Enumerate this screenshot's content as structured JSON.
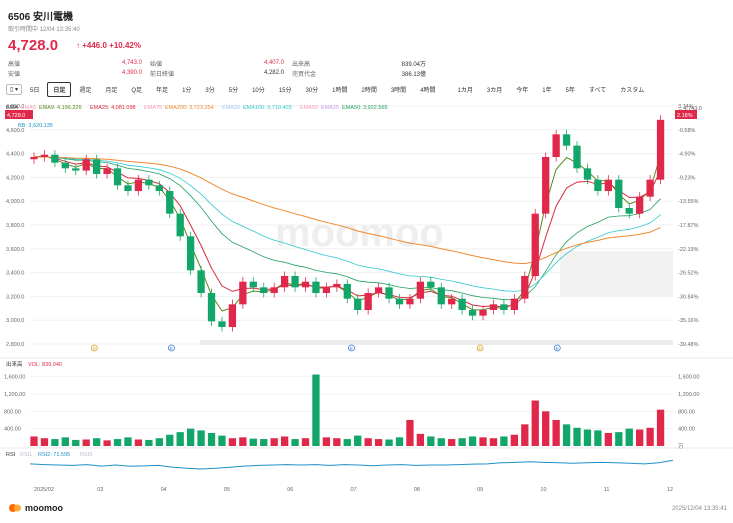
{
  "header": {
    "code": "6506",
    "name": "安川電機",
    "status": "取引時間中 12/04 13:35:40"
  },
  "quote": {
    "price": "4,728.0",
    "arrow": "↑",
    "change": "+446.0",
    "change_pct": "+10.42%"
  },
  "stats": [
    [
      {
        "k": "高値",
        "v": "4,743.0",
        "red": true
      },
      {
        "k": "始値",
        "v": "4,407.0",
        "red": true
      },
      {
        "k": "出来高",
        "v": "839.04万",
        "red": false
      }
    ],
    [
      {
        "k": "安値",
        "v": "4,390.0",
        "red": true
      },
      {
        "k": "前日終値",
        "v": "4,282.0",
        "red": false
      },
      {
        "k": "売買代金",
        "v": "386.13億",
        "red": false
      }
    ]
  ],
  "toolbar": {
    "items": [
      "5日",
      "日足",
      "週足",
      "月足",
      "Q足",
      "年足",
      "1分",
      "3分",
      "5分",
      "10分",
      "15分",
      "30分",
      "1時間",
      "2時間",
      "3時間",
      "4時間",
      "1カ月",
      "3カ月",
      "今年",
      "1年",
      "5年",
      "すべて",
      "カスタム"
    ],
    "active": "日足",
    "icon": "▯ ▾"
  },
  "indicators": {
    "ema_row": [
      {
        "t": "EMA",
        "c": "#333333"
      },
      {
        "t": "EMA5",
        "c": "#f4a0b8"
      },
      {
        "t": "EMA9: 4,196.226",
        "c": "#5a8a1e"
      },
      {
        "t": "EMA25: 4,081.098",
        "c": "#d8283c"
      },
      {
        "t": "EMA75",
        "c": "#f4a0b8"
      },
      {
        "t": "EMA200: 3,723.254",
        "c": "#f08a30"
      },
      {
        "t": "EMA20",
        "c": "#9ec8f0"
      },
      {
        "t": "EMA100: 3,710.403",
        "c": "#30c8d0"
      },
      {
        "t": "EMA50",
        "c": "#f4a0b8"
      },
      {
        "t": "EMA25",
        "c": "#c8a0f0"
      },
      {
        "t": "EMA50: 3,922.565",
        "c": "#20a060"
      }
    ],
    "sar": "SAR",
    "bb": "BB: 3,620.135",
    "vol_label": "出来高",
    "vol_value": "VOL: 839.040",
    "rsi_label": "RSI",
    "rsi_items": [
      {
        "t": "RSI1",
        "c": "#bbbbcc"
      },
      {
        "t": "RSI2: 71.595",
        "c": "#1e90c8"
      },
      {
        "t": "RSI3",
        "c": "#bbbbcc"
      }
    ]
  },
  "axis": {
    "left_ticks": [
      "4,800.0",
      "4,600.0",
      "4,400.0",
      "4,200.0",
      "4,000.0",
      "3,800.0",
      "3,600.0",
      "3,400.0",
      "3,200.0",
      "3,000.0",
      "2,800.0"
    ],
    "right_pct": [
      "3.74%",
      "-0.58%",
      "-4.90%",
      "-9.23%",
      "-13.55%",
      "-17.87%",
      "-22.19%",
      "-26.52%",
      "-30.84%",
      "-35.16%",
      "-39.48%"
    ],
    "current_tag": "4,728.0",
    "current_pct": "2.18%",
    "high_mark": "4,743.0",
    "vol_ticks": [
      "1,600.00",
      "1,200.00",
      "800.00",
      "400.00"
    ],
    "vol_ticks_right": [
      "1,600.00",
      "1,200.00",
      "800.00",
      "400.00",
      "万"
    ],
    "months": [
      "2025/02",
      "03",
      "04",
      "05",
      "06",
      "07",
      "08",
      "09",
      "10",
      "11",
      "12"
    ]
  },
  "markers": [
    "D",
    "E",
    "E",
    "D",
    "E"
  ],
  "watermark": "moomoo",
  "footer": {
    "brand": "moomoo",
    "timestamp": "2025/12/04 13:35:41"
  },
  "colors": {
    "up": "#e0294a",
    "down": "#13a66a",
    "ema9": "#5a8a1e",
    "ema25": "#d8283c",
    "ema200": "#f08a30",
    "ema100": "#30c8d0",
    "ema50": "#20a060"
  },
  "chart_data": {
    "type": "candlestick",
    "months": [
      "2025/02",
      "03",
      "04",
      "05",
      "06",
      "07",
      "08",
      "09",
      "10",
      "11",
      "12"
    ],
    "close_path": [
      4400,
      4420,
      4350,
      4300,
      4280,
      4380,
      4250,
      4300,
      4150,
      4100,
      4200,
      4150,
      4100,
      3900,
      3700,
      3400,
      3200,
      2950,
      2900,
      3100,
      3300,
      3250,
      3200,
      3250,
      3350,
      3250,
      3300,
      3200,
      3250,
      3280,
      3150,
      3050,
      3200,
      3250,
      3150,
      3100,
      3150,
      3300,
      3250,
      3100,
      3150,
      3050,
      3000,
      3050,
      3100,
      3050,
      3150,
      3350,
      3900,
      4400,
      4600,
      4500,
      4300,
      4200,
      4100,
      4200,
      3950,
      3900,
      4050,
      4200,
      4728
    ],
    "ylim": [
      2750,
      4850
    ],
    "volume_path": [
      220,
      180,
      160,
      200,
      140,
      150,
      180,
      130,
      160,
      200,
      150,
      140,
      180,
      260,
      320,
      400,
      360,
      300,
      240,
      180,
      200,
      170,
      160,
      180,
      220,
      160,
      180,
      1650,
      200,
      180,
      160,
      240,
      180,
      160,
      150,
      200,
      600,
      280,
      220,
      180,
      160,
      180,
      220,
      200,
      180,
      220,
      260,
      500,
      1050,
      800,
      600,
      500,
      420,
      380,
      360,
      300,
      320,
      400,
      380,
      420,
      839
    ],
    "vol_ylim": [
      0,
      1800
    ],
    "rsi_path": [
      55,
      52,
      50,
      48,
      52,
      45,
      50,
      44,
      46,
      48,
      40,
      35,
      32,
      35,
      40,
      45,
      48,
      50,
      52,
      50,
      52,
      48,
      52,
      50,
      47,
      50,
      52,
      48,
      50,
      50,
      52,
      54,
      55,
      60,
      62,
      65,
      62,
      60,
      58,
      60,
      62,
      60,
      58,
      55,
      60,
      72
    ],
    "rsi_ylim": [
      0,
      100
    ]
  }
}
